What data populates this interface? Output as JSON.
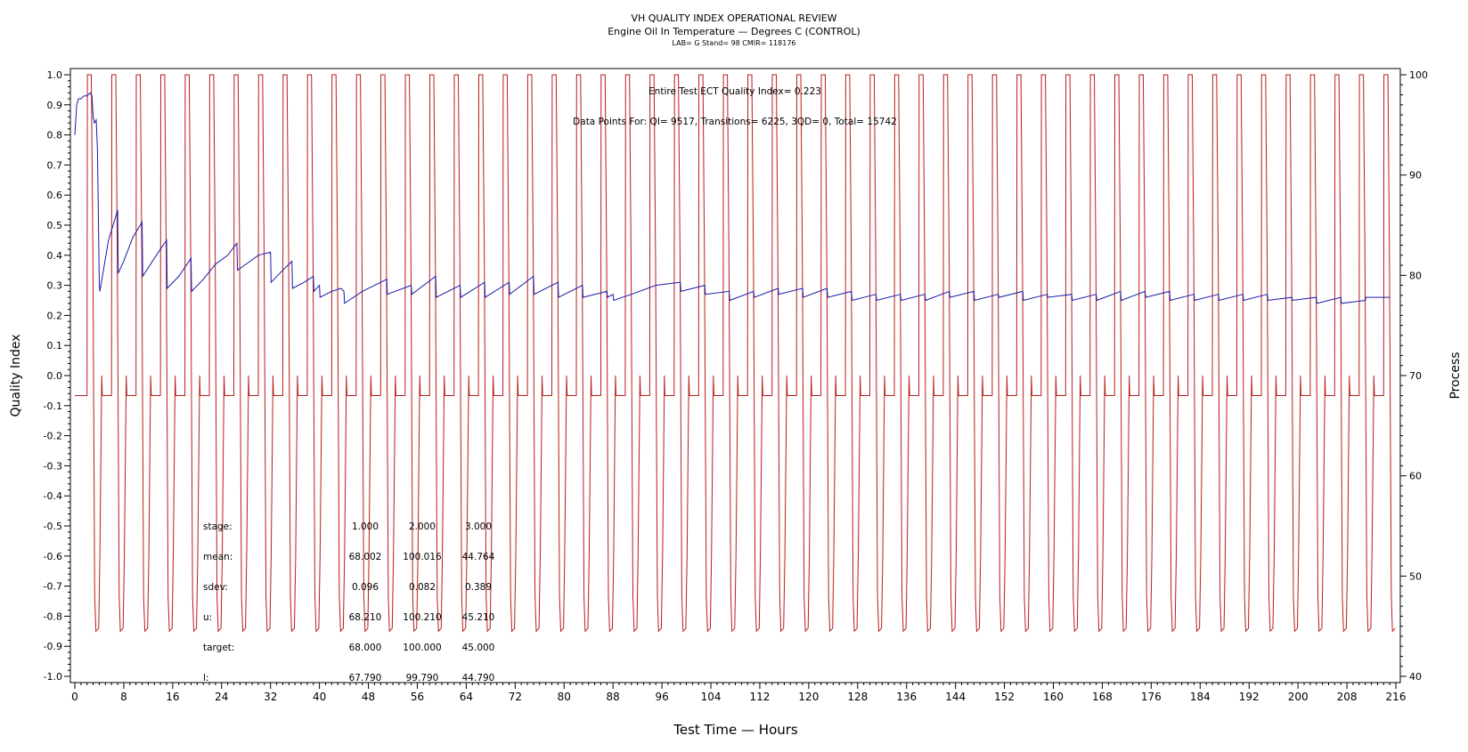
{
  "chart_data": {
    "type": "line",
    "title": "VH QUALITY INDEX OPERATIONAL REVIEW",
    "subtitle": "Engine Oil In Temperature — Degrees C (CONTROL)",
    "subtitle2": "LAB= G Stand= 98 CMIR= 118176",
    "xlabel": "Test Time — Hours",
    "ylabel": "Quality Index",
    "y2label": "Process",
    "xlim": [
      0,
      216
    ],
    "ylim": [
      -1.0,
      1.0
    ],
    "y2lim": [
      40,
      100
    ],
    "xticks": [
      0,
      8,
      16,
      24,
      32,
      40,
      48,
      56,
      64,
      72,
      80,
      88,
      96,
      104,
      112,
      120,
      128,
      136,
      144,
      152,
      160,
      168,
      176,
      184,
      192,
      200,
      208,
      216
    ],
    "yticks": [
      "-1.0",
      "-0.9",
      "-0.8",
      "-0.7",
      "-0.6",
      "-0.5",
      "-0.4",
      "-0.3",
      "-0.2",
      "-0.1",
      "0.0",
      "0.1",
      "0.2",
      "0.3",
      "0.4",
      "0.5",
      "0.6",
      "0.7",
      "0.8",
      "0.9",
      "1.0"
    ],
    "y2ticks": [
      "40",
      "50",
      "60",
      "70",
      "80",
      "90",
      "100"
    ],
    "annotations": {
      "quality_index": "Entire Test ECT Quality Index=   0.223",
      "data_points": "Data Points For: QI=  9517, Transitions=  6225, 3QD=     0, Total=  15742"
    },
    "stats_table": {
      "rows": [
        {
          "label": "stage:",
          "values": [
            "1.000",
            "2.000",
            "3.000"
          ]
        },
        {
          "label": "mean:",
          "values": [
            "68.002",
            "100.016",
            "44.764"
          ]
        },
        {
          "label": "sdev:",
          "values": [
            "0.096",
            "0.082",
            "0.389"
          ]
        },
        {
          "label": "u:",
          "values": [
            "68.210",
            "100.210",
            "45.210"
          ]
        },
        {
          "label": "target:",
          "values": [
            "68.000",
            "100.000",
            "45.000"
          ]
        },
        {
          "label": "l:",
          "values": [
            "67.790",
            "99.790",
            "44.790"
          ]
        }
      ]
    },
    "series": [
      {
        "axis": "left",
        "color": "#1a1aa8",
        "x": [
          0.0,
          0.3,
          0.6,
          1.0,
          1.5,
          2.0,
          2.5,
          2.8,
          3.0,
          3.2,
          3.5,
          3.7,
          4.0,
          4.1,
          5.5,
          7.0,
          7.1,
          8.0,
          9.5,
          11.0,
          11.1,
          13.0,
          15.0,
          15.1,
          17.0,
          19.0,
          19.1,
          21.0,
          23.0,
          25.0,
          26.5,
          26.6,
          28.0,
          30.0,
          32.0,
          32.1,
          34.0,
          35.5,
          35.6,
          37.5,
          39.0,
          39.1,
          40.0,
          40.1,
          42.0,
          43.5,
          44.0,
          44.1,
          47.0,
          51.0,
          51.1,
          55.0,
          55.1,
          59.0,
          59.1,
          63.0,
          63.1,
          67.0,
          67.1,
          71.0,
          71.1,
          75.0,
          75.1,
          79.0,
          79.1,
          83.0,
          83.1,
          87.0,
          87.1,
          88.0,
          88.1,
          91.0,
          95.0,
          99.0,
          99.1,
          103.0,
          103.1,
          107.0,
          107.1,
          111.0,
          111.1,
          115.0,
          115.1,
          119.0,
          119.1,
          123.0,
          123.1,
          127.0,
          127.1,
          131.0,
          131.1,
          135.0,
          135.1,
          139.0,
          139.1,
          143.0,
          143.1,
          147.0,
          147.1,
          151.0,
          151.1,
          155.0,
          155.1,
          159.0,
          159.1,
          163.0,
          163.1,
          167.0,
          167.1,
          171.0,
          171.1,
          175.0,
          175.1,
          179.0,
          179.1,
          183.0,
          183.1,
          187.0,
          187.1,
          191.0,
          191.1,
          195.0,
          195.1,
          199.0,
          199.1,
          203.0,
          203.1,
          207.0,
          207.1,
          211.0,
          211.1,
          215.0
        ],
        "values": [
          0.8,
          0.9,
          0.92,
          0.92,
          0.93,
          0.93,
          0.94,
          0.93,
          0.86,
          0.84,
          0.85,
          0.75,
          0.3,
          0.28,
          0.45,
          0.55,
          0.34,
          0.38,
          0.46,
          0.51,
          0.33,
          0.39,
          0.45,
          0.29,
          0.33,
          0.39,
          0.28,
          0.32,
          0.37,
          0.4,
          0.44,
          0.35,
          0.37,
          0.4,
          0.41,
          0.31,
          0.35,
          0.38,
          0.29,
          0.31,
          0.33,
          0.28,
          0.3,
          0.26,
          0.28,
          0.29,
          0.28,
          0.24,
          0.28,
          0.32,
          0.27,
          0.3,
          0.27,
          0.33,
          0.26,
          0.3,
          0.26,
          0.31,
          0.26,
          0.31,
          0.27,
          0.33,
          0.27,
          0.31,
          0.26,
          0.3,
          0.26,
          0.28,
          0.26,
          0.27,
          0.25,
          0.27,
          0.3,
          0.31,
          0.28,
          0.3,
          0.27,
          0.28,
          0.25,
          0.28,
          0.26,
          0.29,
          0.27,
          0.29,
          0.26,
          0.29,
          0.26,
          0.28,
          0.25,
          0.27,
          0.25,
          0.27,
          0.25,
          0.27,
          0.25,
          0.28,
          0.26,
          0.28,
          0.25,
          0.27,
          0.26,
          0.28,
          0.25,
          0.27,
          0.26,
          0.27,
          0.25,
          0.27,
          0.25,
          0.28,
          0.25,
          0.28,
          0.26,
          0.28,
          0.25,
          0.27,
          0.25,
          0.27,
          0.25,
          0.27,
          0.25,
          0.27,
          0.25,
          0.26,
          0.25,
          0.26,
          0.24,
          0.26,
          0.24,
          0.25,
          0.26,
          0.26
        ]
      },
      {
        "axis": "right",
        "color": "#b81c1c",
        "cycle_period_hours": 4,
        "first_cycle_start_hours": 2.0,
        "stages_c": {
          "low": 44.764,
          "mid": 68.0,
          "high": 100.0
        },
        "cycle_shape": [
          [
            0.0,
            68
          ],
          [
            0.05,
            100
          ],
          [
            0.7,
            100
          ],
          [
            0.95,
            82
          ],
          [
            1.25,
            48
          ],
          [
            1.45,
            44.5
          ],
          [
            1.9,
            44.8
          ],
          [
            2.1,
            52
          ],
          [
            2.3,
            64
          ],
          [
            2.4,
            70
          ],
          [
            2.5,
            68
          ],
          [
            3.9,
            68
          ],
          [
            4.0,
            68
          ]
        ]
      }
    ]
  }
}
